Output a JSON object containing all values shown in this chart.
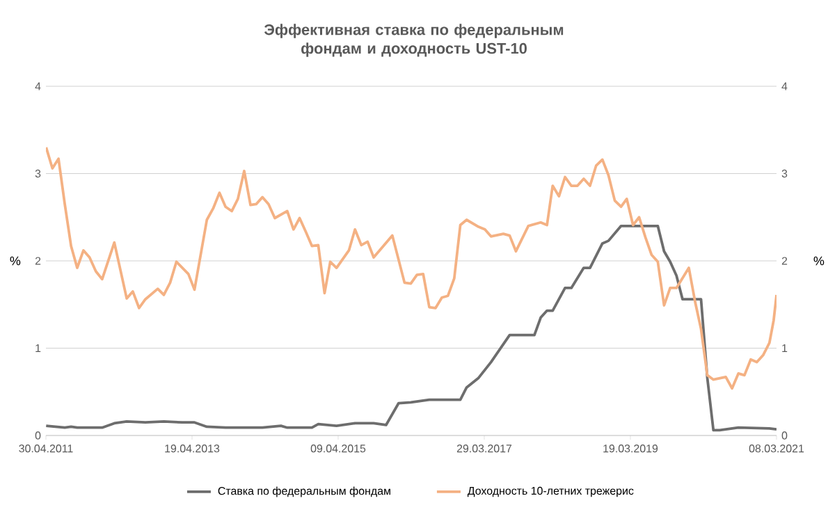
{
  "chart_data": {
    "type": "line",
    "title": "Эффективная ставка по федеральным фондам и доходность UST-10",
    "ylabel": "%",
    "y2label": "%",
    "xlim": [
      "2011-04-30",
      "2021-03-08"
    ],
    "xticks": [
      {
        "value": "2011-04-30",
        "label": "30.04.2011"
      },
      {
        "value": "2013-04-19",
        "label": "19.04.2013"
      },
      {
        "value": "2015-04-09",
        "label": "09.04.2015"
      },
      {
        "value": "2017-03-29",
        "label": "29.03.2017"
      },
      {
        "value": "2019-03-19",
        "label": "19.03.2019"
      },
      {
        "value": "2021-03-08",
        "label": "08.03.2021"
      }
    ],
    "ylim": [
      0,
      4
    ],
    "yticks": [
      0,
      1,
      2,
      3,
      4
    ],
    "y2lim": [
      0,
      4
    ],
    "y2ticks": [
      0,
      1,
      2,
      3,
      4
    ],
    "grid": "y",
    "legend": "bottom",
    "series": [
      {
        "name": "Ставка по федеральным фондам",
        "color": "#6d6d6d",
        "x": [
          "2011-05",
          "2011-08",
          "2011-09",
          "2011-10",
          "2012-02",
          "2012-04",
          "2012-06",
          "2012-09",
          "2012-12",
          "2013-03",
          "2013-05",
          "2013-07",
          "2013-10",
          "2014-01",
          "2014-04",
          "2014-07",
          "2014-08",
          "2014-12",
          "2015-01",
          "2015-04",
          "2015-07",
          "2015-10",
          "2015-12",
          "2016-02",
          "2016-04",
          "2016-07",
          "2016-12",
          "2017-01",
          "2017-03",
          "2017-05",
          "2017-08",
          "2017-12",
          "2018-01",
          "2018-02",
          "2018-03",
          "2018-05",
          "2018-06",
          "2018-08",
          "2018-09",
          "2018-11",
          "2018-12",
          "2019-02",
          "2019-08",
          "2019-09",
          "2019-10",
          "2019-11",
          "2019-12",
          "2020-03",
          "2020-04",
          "2020-05",
          "2020-06",
          "2020-09",
          "2021-02",
          "2021-03-08"
        ],
        "values": [
          0.11,
          0.09,
          0.1,
          0.09,
          0.09,
          0.14,
          0.16,
          0.15,
          0.16,
          0.15,
          0.15,
          0.1,
          0.09,
          0.09,
          0.09,
          0.11,
          0.09,
          0.09,
          0.13,
          0.11,
          0.14,
          0.14,
          0.12,
          0.37,
          0.38,
          0.41,
          0.41,
          0.55,
          0.66,
          0.84,
          1.15,
          1.15,
          1.35,
          1.43,
          1.43,
          1.69,
          1.69,
          1.92,
          1.92,
          2.2,
          2.23,
          2.4,
          2.4,
          2.11,
          1.99,
          1.83,
          1.56,
          1.56,
          0.66,
          0.06,
          0.06,
          0.09,
          0.08,
          0.07
        ]
      },
      {
        "name": "Доходность 10-летних трежерис",
        "color": "#f4b183",
        "x": [
          "2011-05",
          "2011-06",
          "2011-07",
          "2011-08",
          "2011-09",
          "2011-10",
          "2011-11",
          "2011-12",
          "2012-01",
          "2012-02",
          "2012-04",
          "2012-06",
          "2012-07",
          "2012-08",
          "2012-09",
          "2012-11",
          "2012-12",
          "2013-01",
          "2013-02",
          "2013-04",
          "2013-05",
          "2013-07",
          "2013-08",
          "2013-09",
          "2013-10",
          "2013-11",
          "2013-12",
          "2014-01",
          "2014-02",
          "2014-03",
          "2014-04",
          "2014-05",
          "2014-06",
          "2014-08",
          "2014-09",
          "2014-10",
          "2014-11",
          "2014-12",
          "2015-01",
          "2015-02",
          "2015-03",
          "2015-04",
          "2015-06",
          "2015-07",
          "2015-08",
          "2015-09",
          "2015-10",
          "2016-01",
          "2016-03",
          "2016-04",
          "2016-05",
          "2016-06",
          "2016-07",
          "2016-08",
          "2016-09",
          "2016-10",
          "2016-11",
          "2016-12",
          "2017-01",
          "2017-03",
          "2017-04",
          "2017-05",
          "2017-07",
          "2017-08",
          "2017-09",
          "2017-11",
          "2018-01",
          "2018-02",
          "2018-03",
          "2018-04",
          "2018-05",
          "2018-06",
          "2018-07",
          "2018-08",
          "2018-09",
          "2018-10",
          "2018-11",
          "2018-12",
          "2019-01",
          "2019-02",
          "2019-03",
          "2019-04",
          "2019-05",
          "2019-06",
          "2019-07",
          "2019-08",
          "2019-09",
          "2019-10",
          "2019-11",
          "2020-01",
          "2020-02",
          "2020-03",
          "2020-04",
          "2020-05",
          "2020-07",
          "2020-08",
          "2020-09",
          "2020-10",
          "2020-11",
          "2020-12",
          "2021-01",
          "2021-02",
          "2021-02-22",
          "2021-03-08"
        ],
        "values": [
          3.3,
          3.06,
          3.17,
          2.65,
          2.17,
          1.92,
          2.12,
          2.04,
          1.88,
          1.79,
          2.21,
          1.57,
          1.65,
          1.46,
          1.56,
          1.68,
          1.61,
          1.75,
          1.99,
          1.85,
          1.67,
          2.47,
          2.6,
          2.78,
          2.62,
          2.57,
          2.71,
          3.03,
          2.64,
          2.65,
          2.73,
          2.65,
          2.49,
          2.57,
          2.36,
          2.49,
          2.33,
          2.17,
          2.18,
          1.63,
          1.99,
          1.92,
          2.12,
          2.36,
          2.18,
          2.22,
          2.04,
          2.29,
          1.75,
          1.74,
          1.84,
          1.85,
          1.47,
          1.46,
          1.58,
          1.6,
          1.8,
          2.41,
          2.47,
          2.39,
          2.36,
          2.28,
          2.31,
          2.29,
          2.11,
          2.4,
          2.44,
          2.41,
          2.86,
          2.74,
          2.96,
          2.86,
          2.86,
          2.94,
          2.86,
          3.09,
          3.16,
          2.98,
          2.69,
          2.62,
          2.71,
          2.41,
          2.5,
          2.27,
          2.07,
          1.99,
          1.49,
          1.69,
          1.69,
          1.92,
          1.53,
          1.22,
          0.69,
          0.64,
          0.67,
          0.54,
          0.71,
          0.69,
          0.87,
          0.84,
          0.92,
          1.06,
          1.32,
          1.61
        ]
      }
    ]
  }
}
